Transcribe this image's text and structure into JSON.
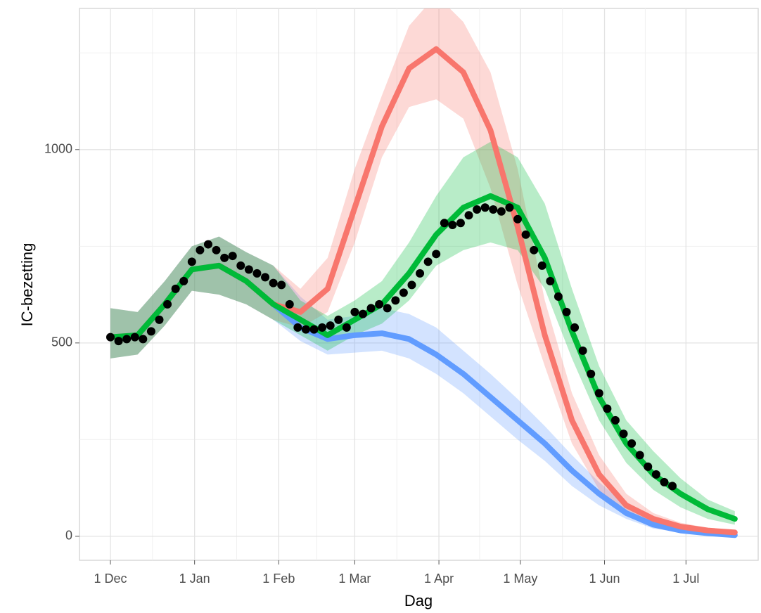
{
  "chart_data": {
    "type": "line",
    "x_label": "Dag",
    "y_label": "IC-bezetting",
    "xlim": [
      -11.4,
      238.6
    ],
    "ylim": [
      -62,
      1365
    ],
    "xticks": [
      {
        "value": 0,
        "label": "1 Dec"
      },
      {
        "value": 31,
        "label": "1 Jan"
      },
      {
        "value": 62,
        "label": "1 Feb"
      },
      {
        "value": 90,
        "label": "1 Mar"
      },
      {
        "value": 121,
        "label": "1 Apr"
      },
      {
        "value": 151,
        "label": "1 May"
      },
      {
        "value": 182,
        "label": "1 Jun"
      },
      {
        "value": 212,
        "label": "1 Jul"
      }
    ],
    "yticks": [
      0,
      500,
      1000
    ],
    "grid": true,
    "x": [
      0,
      10,
      20,
      30,
      40,
      50,
      60,
      70,
      80,
      90,
      100,
      110,
      120,
      130,
      140,
      150,
      160,
      170,
      180,
      190,
      200,
      210,
      220,
      230
    ],
    "series": [
      {
        "color": "#619cff",
        "values": [
          515,
          520,
          600,
          690,
          700,
          660,
          600,
          540,
          510,
          520,
          525,
          510,
          470,
          420,
          360,
          300,
          240,
          170,
          110,
          60,
          30,
          15,
          8,
          3
        ],
        "lower": [
          460,
          470,
          545,
          635,
          625,
          600,
          560,
          505,
          470,
          475,
          480,
          460,
          420,
          370,
          310,
          250,
          195,
          130,
          80,
          45,
          20,
          10,
          4,
          0
        ],
        "upper": [
          590,
          580,
          660,
          750,
          775,
          735,
          700,
          620,
          560,
          570,
          590,
          575,
          540,
          480,
          420,
          355,
          285,
          210,
          140,
          80,
          50,
          28,
          15,
          8
        ]
      },
      {
        "color": "#f8766d",
        "values": [
          515,
          520,
          600,
          690,
          700,
          660,
          600,
          580,
          640,
          850,
          1060,
          1210,
          1260,
          1200,
          1050,
          800,
          520,
          300,
          160,
          80,
          45,
          25,
          15,
          10
        ],
        "lower": [
          460,
          470,
          545,
          635,
          625,
          600,
          560,
          540,
          580,
          760,
          980,
          1110,
          1130,
          1080,
          900,
          650,
          440,
          240,
          120,
          60,
          30,
          15,
          8,
          5
        ],
        "upper": [
          590,
          580,
          660,
          750,
          775,
          735,
          700,
          640,
          720,
          950,
          1140,
          1320,
          1400,
          1330,
          1200,
          950,
          610,
          370,
          210,
          110,
          60,
          35,
          22,
          15
        ]
      },
      {
        "color": "#00ba38",
        "values": [
          515,
          520,
          600,
          690,
          700,
          660,
          600,
          560,
          520,
          560,
          600,
          680,
          780,
          850,
          880,
          850,
          720,
          530,
          360,
          240,
          160,
          110,
          70,
          45
        ],
        "lower": [
          460,
          470,
          545,
          635,
          625,
          600,
          560,
          520,
          480,
          520,
          550,
          610,
          700,
          740,
          760,
          740,
          640,
          460,
          300,
          190,
          120,
          75,
          45,
          30
        ],
        "upper": [
          590,
          580,
          660,
          750,
          775,
          735,
          700,
          610,
          570,
          610,
          660,
          760,
          880,
          980,
          1020,
          980,
          860,
          640,
          440,
          300,
          220,
          150,
          95,
          65
        ]
      }
    ],
    "observed": {
      "color": "#000000",
      "x": [
        0,
        3,
        6,
        9,
        12,
        15,
        18,
        21,
        24,
        27,
        30,
        33,
        36,
        39,
        42,
        45,
        48,
        51,
        54,
        57,
        60,
        63,
        66,
        69,
        72,
        75,
        78,
        81,
        84,
        87,
        90,
        93,
        96,
        99,
        102,
        105,
        108,
        111,
        114,
        117,
        120,
        123,
        126,
        129,
        132,
        135,
        138,
        141,
        144,
        147,
        150,
        153,
        156,
        159,
        162,
        165,
        168,
        171,
        174,
        177,
        180,
        183,
        186,
        189,
        192,
        195,
        198,
        201,
        204,
        207
      ],
      "values": [
        515,
        505,
        510,
        515,
        510,
        530,
        560,
        600,
        640,
        660,
        710,
        740,
        755,
        740,
        720,
        725,
        700,
        690,
        680,
        670,
        655,
        650,
        600,
        540,
        535,
        535,
        540,
        545,
        560,
        540,
        580,
        575,
        590,
        600,
        590,
        610,
        630,
        650,
        680,
        710,
        730,
        810,
        805,
        810,
        830,
        845,
        850,
        845,
        840,
        850,
        820,
        780,
        740,
        700,
        660,
        620,
        580,
        540,
        480,
        420,
        370,
        330,
        300,
        265,
        240,
        210,
        180,
        160,
        140,
        130
      ]
    }
  }
}
